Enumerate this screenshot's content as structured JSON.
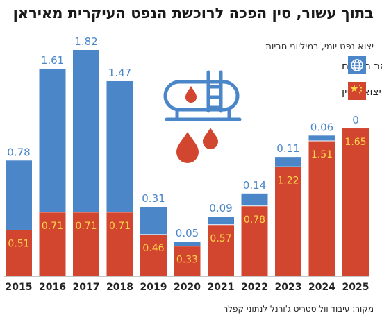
{
  "header": {
    "title": "בתוך עשור, סין הפכה לרוכשת הנפט העיקרית מאיראן",
    "subtitle": "יצוא נפט יומי, במיליוני חביות",
    "source": "מקור: עיבוד וול סטריט ג'ורנל לנתוני קפלר"
  },
  "chart_data": {
    "type": "bar",
    "stacked": true,
    "categories": [
      "2015",
      "2016",
      "2017",
      "2018",
      "2019",
      "2020",
      "2021",
      "2022",
      "2023",
      "2024",
      "2025"
    ],
    "series": [
      {
        "name": "יצוא לסין",
        "color": "#d2452f",
        "values": [
          0.51,
          0.71,
          0.71,
          0.71,
          0.46,
          0.33,
          0.57,
          0.78,
          1.22,
          1.51,
          1.65
        ]
      },
      {
        "name": "יצוא לשאר העולם",
        "color": "#4a86c8",
        "values": [
          0.78,
          1.61,
          1.82,
          1.47,
          0.31,
          0.05,
          0.09,
          0.14,
          0.11,
          0.06,
          0
        ]
      }
    ],
    "value_labels": {
      "inside": [
        "0.51",
        "0.71",
        "0.71",
        "0.71",
        "0.46",
        "0.33",
        "0.57",
        "0.78",
        "1.22",
        "1.51",
        "1.65"
      ],
      "top": [
        "0.78",
        "1.61",
        "1.82",
        "1.47",
        "0.31",
        "0.05",
        "0.09",
        "0.14",
        "0.11",
        "0.06",
        "0"
      ]
    },
    "legend": [
      {
        "label": "יצוא לשאר העולם",
        "icon": "globe-icon",
        "color": "#4a86c8"
      },
      {
        "label": "יצוא לסין",
        "icon": "china-flag-icon",
        "color": "#d2452f"
      }
    ],
    "legend_position": "top-right",
    "grid": false,
    "ylim": [
      0,
      2.53
    ]
  }
}
